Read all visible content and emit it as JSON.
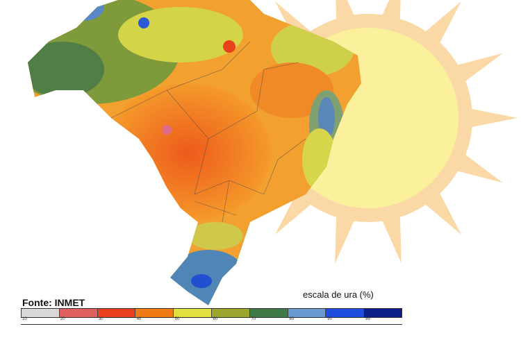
{
  "source_label": "Fonte: INMET",
  "scale_title": "escala de ura (%)",
  "legend": {
    "colors": [
      "#d9d9d9",
      "#e06060",
      "#e8401c",
      "#f07a14",
      "#e2e040",
      "#9aa62c",
      "#3f7a48",
      "#6a9ad2",
      "#1e4ee0",
      "#0c1e8a"
    ],
    "ticks": [
      "10",
      "20",
      "30",
      "40",
      "50",
      "60",
      "70",
      "80",
      "90",
      "99"
    ]
  },
  "colors": {
    "sun_core": "#fbf19c",
    "sun_rays": "#fbd9a6"
  }
}
